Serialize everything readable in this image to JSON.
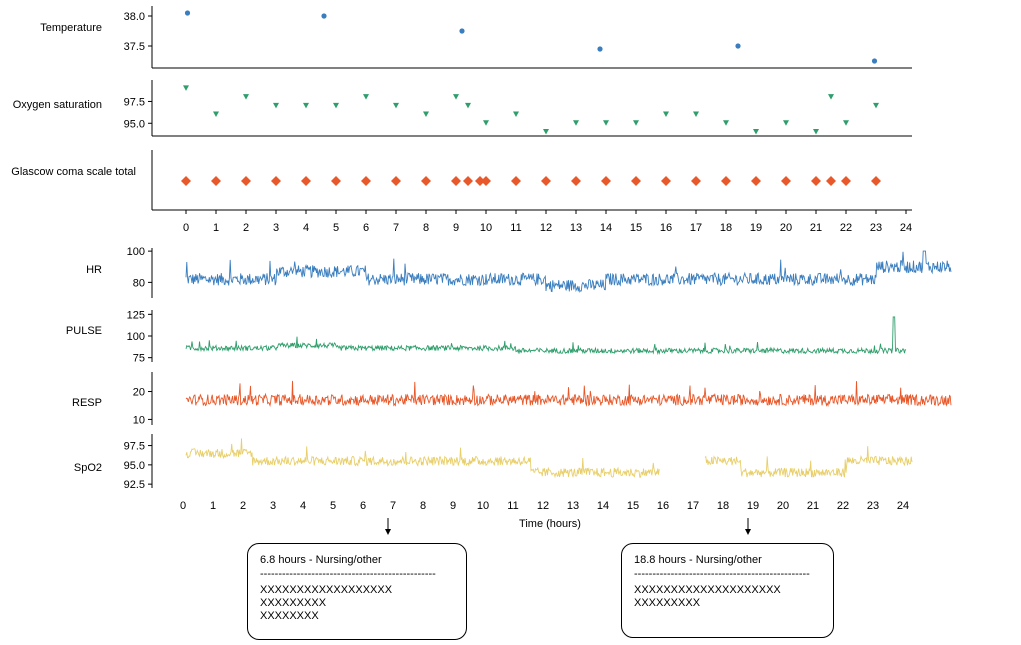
{
  "chart_data": [
    {
      "type": "scatter",
      "panel": "event-markers",
      "x_range": [
        -0.3,
        24.3
      ],
      "x_ticks": [
        0,
        1,
        2,
        3,
        4,
        5,
        6,
        7,
        8,
        9,
        10,
        11,
        12,
        13,
        14,
        15,
        16,
        17,
        18,
        19,
        20,
        21,
        22,
        23,
        24
      ],
      "series": [
        {
          "name": "Temperature",
          "color": "#3a7ebf",
          "y_ticks": [
            {
              "value": 37.5,
              "label": "37.5"
            },
            {
              "value": 38.0,
              "label": "38.0"
            }
          ],
          "y_range": [
            37.2,
            38.1
          ],
          "points": [
            [
              0.05,
              38.05
            ],
            [
              4.6,
              38.0
            ],
            [
              9.2,
              37.75
            ],
            [
              13.8,
              37.45
            ],
            [
              18.4,
              37.5
            ],
            [
              22.95,
              37.25
            ]
          ]
        },
        {
          "name": "Oxygen saturation",
          "color": "#2e9e6b",
          "y_ticks": [
            {
              "value": 95.0,
              "label": "95.0"
            },
            {
              "value": 97.5,
              "label": "97.5"
            }
          ],
          "y_range": [
            94.0,
            99.5
          ],
          "points": [
            [
              0,
              99
            ],
            [
              1,
              96
            ],
            [
              2,
              98
            ],
            [
              3,
              97
            ],
            [
              4,
              97
            ],
            [
              5,
              97
            ],
            [
              6,
              98
            ],
            [
              7,
              97
            ],
            [
              8,
              96
            ],
            [
              9,
              98
            ],
            [
              9.4,
              97
            ],
            [
              10,
              95
            ],
            [
              11,
              96
            ],
            [
              12,
              94
            ],
            [
              13,
              95
            ],
            [
              14,
              95
            ],
            [
              15,
              95
            ],
            [
              16,
              96
            ],
            [
              17,
              96
            ],
            [
              18,
              95
            ],
            [
              19,
              94
            ],
            [
              20,
              95
            ],
            [
              21,
              94
            ],
            [
              21.5,
              98
            ],
            [
              22,
              95
            ],
            [
              23,
              97
            ]
          ]
        },
        {
          "name": "Glascow coma scale total",
          "color": "#e8582a",
          "points": [
            0,
            1,
            2,
            3,
            4,
            5,
            6,
            7,
            8,
            9,
            9.4,
            9.8,
            10,
            11,
            12,
            13,
            14,
            15,
            16,
            17,
            18,
            19,
            20,
            21,
            21.5,
            22,
            23
          ]
        }
      ]
    },
    {
      "type": "line",
      "panel": "vitals-waveforms",
      "xlabel": "Time (hours)",
      "x_ticks": [
        0,
        1,
        2,
        3,
        4,
        5,
        6,
        7,
        8,
        9,
        10,
        11,
        12,
        13,
        14,
        15,
        16,
        17,
        18,
        19,
        20,
        21,
        22,
        23,
        24
      ],
      "series": [
        {
          "name": "HR",
          "color": "#3a7ebf",
          "y_ticks": [
            {
              "value": 80,
              "label": "80"
            },
            {
              "value": 100,
              "label": "100"
            }
          ],
          "y_range": [
            70,
            102
          ],
          "x_end": 25.5,
          "base": 82,
          "noise": 4
        },
        {
          "name": "PULSE",
          "color": "#2e9e6b",
          "y_ticks": [
            {
              "value": 75,
              "label": "75"
            },
            {
              "value": 100,
              "label": "100"
            },
            {
              "value": 125,
              "label": "125"
            }
          ],
          "y_range": [
            70,
            130
          ],
          "x_end": 24.0,
          "base": 86,
          "noise": 3
        },
        {
          "name": "RESP",
          "color": "#e8582a",
          "y_ticks": [
            {
              "value": 10,
              "label": "10"
            },
            {
              "value": 20,
              "label": "20"
            }
          ],
          "y_range": [
            8,
            27
          ],
          "x_end": 25.5,
          "base": 17,
          "noise": 2
        },
        {
          "name": "SpO2",
          "color": "#e8cf6a",
          "y_ticks": [
            {
              "value": 92.5,
              "label": "92.5"
            },
            {
              "value": 95.0,
              "label": "95.0"
            },
            {
              "value": 97.5,
              "label": "97.5"
            }
          ],
          "y_range": [
            92.0,
            99.0
          ],
          "x_end": 24.2,
          "gap": [
            15.8,
            17.3
          ],
          "base": 96.5,
          "noise": 0.6
        }
      ]
    }
  ],
  "notes": [
    {
      "time_hours": 6.8,
      "title": "6.8 hours - Nursing/other",
      "rule": "------------------------------------------------",
      "lines": [
        "XXXXXXXXXXXXXXXXXX",
        "XXXXXXXXX",
        "XXXXXXXX"
      ]
    },
    {
      "time_hours": 18.8,
      "title": "18.8 hours - Nursing/other",
      "rule": "------------------------------------------------",
      "lines": [
        "XXXXXXXXXXXXXXXXXXXX",
        "XXXXXXXXX"
      ]
    }
  ]
}
